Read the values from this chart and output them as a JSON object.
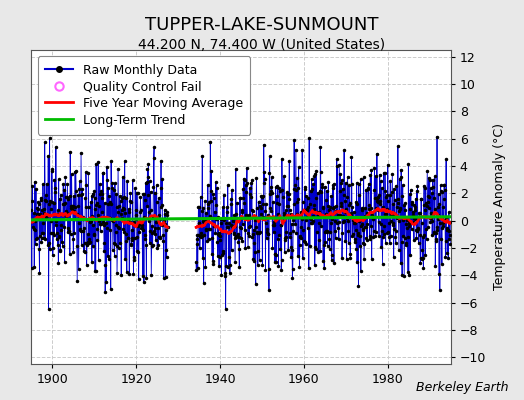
{
  "title": "TUPPER-LAKE-SUNMOUNT",
  "subtitle": "44.200 N, 74.400 W (United States)",
  "ylabel": "Temperature Anomaly (°C)",
  "credit": "Berkeley Earth",
  "ylim": [
    -10.5,
    12.5
  ],
  "xlim": [
    1895,
    1995
  ],
  "yticks": [
    -10,
    -8,
    -6,
    -4,
    -2,
    0,
    2,
    4,
    6,
    8,
    10,
    12
  ],
  "xticks": [
    1900,
    1920,
    1940,
    1960,
    1980
  ],
  "bg_color": "#e8e8e8",
  "plot_bg_color": "#ffffff",
  "raw_color": "#0000cc",
  "raw_fill_color": "#aaaaff",
  "dot_color": "#000000",
  "ma_color": "#ff0000",
  "trend_color": "#00bb00",
  "qc_color": "#ff66ff",
  "legend_labels": [
    "Raw Monthly Data",
    "Quality Control Fail",
    "Five Year Moving Average",
    "Long-Term Trend"
  ],
  "title_fontsize": 13,
  "subtitle_fontsize": 10,
  "ylabel_fontsize": 9,
  "tick_fontsize": 9,
  "legend_fontsize": 9,
  "gap_start": 1927.5,
  "gap_end": 1934.25,
  "data_start": 1895,
  "data_end": 1995
}
